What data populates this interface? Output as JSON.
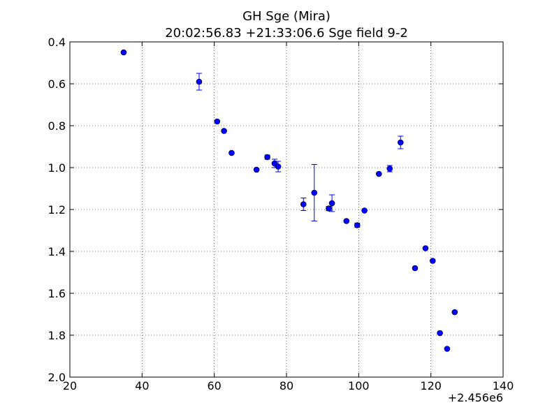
{
  "chart_data": {
    "type": "scatter",
    "title": "GH Sge (Mira)",
    "subtitle": "20:02:56.83 +21:33:06.6 Sge field 9-2",
    "xlabel": "",
    "ylabel": "",
    "x_offset_label": "+2.456e6",
    "xlim": [
      20,
      140
    ],
    "ylim": [
      2.0,
      0.4
    ],
    "y_inverted": true,
    "grid": true,
    "x_ticks": [
      20,
      40,
      60,
      80,
      100,
      120,
      140
    ],
    "x_tick_labels": [
      "20",
      "40",
      "60",
      "80",
      "100",
      "120",
      "140"
    ],
    "y_ticks": [
      0.4,
      0.6,
      0.8,
      1.0,
      1.2,
      1.4,
      1.6,
      1.8,
      2.0
    ],
    "y_tick_labels": [
      "0.4",
      "0.6",
      "0.8",
      "1.0",
      "1.2",
      "1.4",
      "1.6",
      "1.8",
      "2.0"
    ],
    "marker_color": "#0000ff",
    "errorbar_color": "#0000ff",
    "points": [
      {
        "x": 34.9,
        "y": 0.45,
        "err": 0.0
      },
      {
        "x": 55.8,
        "y": 0.59,
        "err": 0.04
      },
      {
        "x": 60.8,
        "y": 0.78,
        "err": 0.0
      },
      {
        "x": 62.7,
        "y": 0.825,
        "err": 0.0
      },
      {
        "x": 64.8,
        "y": 0.93,
        "err": 0.0
      },
      {
        "x": 71.7,
        "y": 1.01,
        "err": 0.0
      },
      {
        "x": 74.7,
        "y": 0.95,
        "err": 0.01
      },
      {
        "x": 76.7,
        "y": 0.98,
        "err": 0.02
      },
      {
        "x": 77.7,
        "y": 0.995,
        "err": 0.025
      },
      {
        "x": 84.7,
        "y": 1.175,
        "err": 0.03
      },
      {
        "x": 87.7,
        "y": 1.12,
        "err": 0.135
      },
      {
        "x": 91.7,
        "y": 1.195,
        "err": 0.01
      },
      {
        "x": 92.6,
        "y": 1.17,
        "err": 0.04
      },
      {
        "x": 96.6,
        "y": 1.255,
        "err": 0.0
      },
      {
        "x": 99.6,
        "y": 1.275,
        "err": 0.01
      },
      {
        "x": 101.6,
        "y": 1.205,
        "err": 0.0
      },
      {
        "x": 105.6,
        "y": 1.03,
        "err": 0.0
      },
      {
        "x": 108.6,
        "y": 1.005,
        "err": 0.015
      },
      {
        "x": 111.6,
        "y": 0.88,
        "err": 0.03
      },
      {
        "x": 115.6,
        "y": 1.48,
        "err": 0.0
      },
      {
        "x": 118.5,
        "y": 1.385,
        "err": 0.0
      },
      {
        "x": 120.5,
        "y": 1.445,
        "err": 0.0
      },
      {
        "x": 122.5,
        "y": 1.79,
        "err": 0.0
      },
      {
        "x": 124.5,
        "y": 1.865,
        "err": 0.0
      },
      {
        "x": 126.6,
        "y": 1.69,
        "err": 0.0
      }
    ]
  }
}
